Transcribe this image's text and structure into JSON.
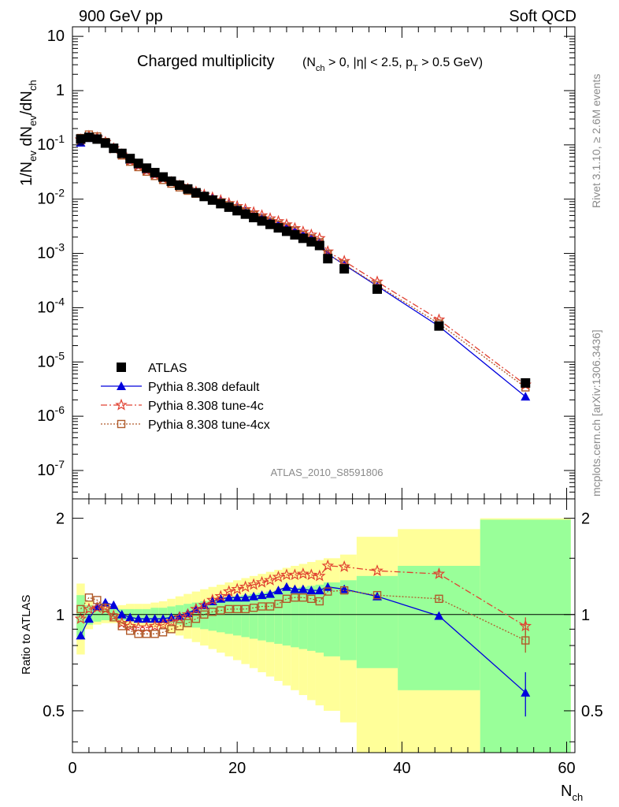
{
  "header": {
    "left": "900 GeV pp",
    "right": "Soft QCD"
  },
  "side": {
    "rivet": "Rivet 3.1.10, ≥ 2.6M events",
    "mcplots": "mcplots.cern.ch [arXiv:1306.3436]"
  },
  "plot_title": {
    "main": "Charged multiplicity",
    "cuts": "(N_ch > 0, |η| < 2.5, p_T > 0.5 GeV)"
  },
  "analysis_id": "ATLAS_2010_S8591806",
  "colors": {
    "atlas": "#000000",
    "default": "#0000dd",
    "tune4c": "#e04030",
    "tune4cx": "#b05a2a",
    "band_inner": "#99ff99",
    "band_outer": "#ffff99"
  },
  "chart_data": [
    {
      "type": "scatter",
      "panel": "main",
      "xlim": [
        0,
        61
      ],
      "ylim": [
        3e-08,
        15
      ],
      "yscale": "log",
      "ylabel": "1/N_ev dN_ev/dN_ch",
      "y_ticks": [
        "10",
        "1",
        "10^-1",
        "10^-2",
        "10^-3",
        "10^-4",
        "10^-5",
        "10^-6",
        "10^-7"
      ],
      "legend_position": "bottom-left",
      "series": [
        {
          "name": "ATLAS",
          "x": [
            1,
            2,
            3,
            4,
            5,
            6,
            7,
            8,
            9,
            10,
            11,
            12,
            13,
            14,
            15,
            16,
            17,
            18,
            19,
            20,
            21,
            22,
            23,
            24,
            25,
            26,
            27,
            28,
            29,
            30,
            31,
            33,
            37,
            44.5,
            55
          ],
          "y": [
            0.128,
            0.138,
            0.128,
            0.108,
            0.0865,
            0.0696,
            0.056,
            0.0456,
            0.0373,
            0.0308,
            0.0256,
            0.0214,
            0.0181,
            0.0154,
            0.0131,
            0.0112,
            0.00963,
            0.00826,
            0.00712,
            0.00613,
            0.0053,
            0.00458,
            0.00396,
            0.00343,
            0.00296,
            0.00256,
            0.0022,
            0.0019,
            0.00164,
            0.0014,
            0.0008,
            0.00052,
            0.00022,
            4.6e-05,
            4.1e-06
          ]
        },
        {
          "name": "Pythia 8.308 default",
          "x": [
            1,
            2,
            3,
            4,
            5,
            6,
            7,
            8,
            9,
            10,
            11,
            12,
            13,
            14,
            15,
            16,
            17,
            18,
            19,
            20,
            21,
            22,
            23,
            24,
            25,
            26,
            27,
            28,
            29,
            30,
            31,
            33,
            37,
            44.5,
            55
          ],
          "y": [
            0.11,
            0.134,
            0.135,
            0.117,
            0.09,
            0.068,
            0.053,
            0.043,
            0.0352,
            0.0294,
            0.0248,
            0.021,
            0.0179,
            0.0155,
            0.0135,
            0.0118,
            0.0104,
            0.0091,
            0.0079,
            0.0069,
            0.006,
            0.0052,
            0.0045,
            0.0039,
            0.0034,
            0.003,
            0.0026,
            0.0022,
            0.0019,
            0.0016,
            0.00098,
            0.00062,
            0.00025,
            4.55e-05,
            2.3e-06
          ]
        },
        {
          "name": "Pythia 8.308 tune-4c",
          "x": [
            1,
            2,
            3,
            4,
            5,
            6,
            7,
            8,
            9,
            10,
            11,
            12,
            13,
            14,
            15,
            16,
            17,
            18,
            19,
            20,
            21,
            22,
            23,
            24,
            25,
            26,
            27,
            28,
            29,
            30,
            31,
            33,
            37,
            44.5,
            55
          ],
          "y": [
            0.125,
            0.145,
            0.136,
            0.112,
            0.086,
            0.066,
            0.051,
            0.041,
            0.0338,
            0.0282,
            0.0239,
            0.0205,
            0.0177,
            0.0154,
            0.0136,
            0.012,
            0.0107,
            0.0095,
            0.0084,
            0.0074,
            0.0065,
            0.0057,
            0.005,
            0.0044,
            0.0039,
            0.0034,
            0.0029,
            0.0025,
            0.0022,
            0.0019,
            0.00108,
            0.00072,
            0.0003,
            6e-05,
            3.8e-06
          ]
        },
        {
          "name": "Pythia 8.308 tune-4cx",
          "x": [
            1,
            2,
            3,
            4,
            5,
            6,
            7,
            8,
            9,
            10,
            11,
            12,
            13,
            14,
            15,
            16,
            17,
            18,
            19,
            20,
            21,
            22,
            23,
            24,
            25,
            26,
            27,
            28,
            29,
            30,
            31,
            33,
            37,
            44.5,
            55
          ],
          "y": [
            0.134,
            0.155,
            0.143,
            0.113,
            0.085,
            0.064,
            0.049,
            0.039,
            0.0321,
            0.0267,
            0.0226,
            0.0193,
            0.0165,
            0.0143,
            0.0126,
            0.0111,
            0.0098,
            0.0087,
            0.0077,
            0.0067,
            0.0058,
            0.0051,
            0.0044,
            0.0038,
            0.0034,
            0.003,
            0.0026,
            0.0022,
            0.0019,
            0.0016,
            0.00097,
            0.00063,
            0.00026,
            5.1e-05,
            3.4e-06
          ]
        }
      ]
    },
    {
      "type": "scatter",
      "panel": "ratio",
      "xlim": [
        0,
        61
      ],
      "ylim": [
        0.37,
        2.3
      ],
      "yscale": "log",
      "xlabel": "N_ch",
      "ylabel": "Ratio to ATLAS",
      "x_ticks": [
        0,
        20,
        40,
        60
      ],
      "y_ticks": [
        0.5,
        1,
        2
      ],
      "bands": {
        "edges": [
          0.5,
          1.5,
          2.5,
          3.5,
          4.5,
          5.5,
          6.5,
          7.5,
          8.5,
          9.5,
          10.5,
          11.5,
          12.5,
          13.5,
          14.5,
          15.5,
          16.5,
          17.5,
          18.5,
          19.5,
          20.5,
          21.5,
          22.5,
          23.5,
          24.5,
          25.5,
          26.5,
          27.5,
          28.5,
          29.5,
          30.5,
          32.5,
          34.5,
          39.5,
          49.5,
          60.5
        ],
        "inner_halfwidth": [
          0.15,
          0.07,
          0.05,
          0.04,
          0.04,
          0.04,
          0.04,
          0.04,
          0.04,
          0.05,
          0.05,
          0.06,
          0.07,
          0.08,
          0.09,
          0.1,
          0.11,
          0.12,
          0.13,
          0.14,
          0.15,
          0.16,
          0.17,
          0.18,
          0.19,
          0.2,
          0.21,
          0.22,
          0.23,
          0.24,
          0.26,
          0.28,
          0.32,
          0.42,
          0.98
        ],
        "outer_halfwidth": [
          0.25,
          0.1,
          0.07,
          0.06,
          0.06,
          0.07,
          0.08,
          0.08,
          0.08,
          0.09,
          0.1,
          0.12,
          0.14,
          0.16,
          0.18,
          0.2,
          0.22,
          0.24,
          0.26,
          0.28,
          0.3,
          0.32,
          0.34,
          0.36,
          0.38,
          0.4,
          0.42,
          0.44,
          0.46,
          0.48,
          0.5,
          0.54,
          0.75,
          0.85,
          1.0
        ]
      },
      "series": [
        {
          "name": "Pythia 8.308 default",
          "x": [
            1,
            2,
            3,
            4,
            5,
            6,
            7,
            8,
            9,
            10,
            11,
            12,
            13,
            14,
            15,
            16,
            17,
            18,
            19,
            20,
            21,
            22,
            23,
            24,
            25,
            26,
            27,
            28,
            29,
            30,
            31,
            33,
            37,
            44.5,
            55
          ],
          "y": [
            0.86,
            0.97,
            1.06,
            1.09,
            1.07,
            1.0,
            0.98,
            0.97,
            0.97,
            0.97,
            0.97,
            0.98,
            0.99,
            1.01,
            1.04,
            1.07,
            1.1,
            1.12,
            1.13,
            1.13,
            1.13,
            1.14,
            1.15,
            1.16,
            1.19,
            1.22,
            1.2,
            1.2,
            1.19,
            1.19,
            1.22,
            1.2,
            1.14,
            0.99,
            0.57
          ],
          "yerr": [
            0,
            0,
            0,
            0,
            0,
            0,
            0,
            0,
            0,
            0,
            0,
            0,
            0,
            0,
            0,
            0,
            0,
            0,
            0,
            0,
            0,
            0,
            0,
            0,
            0,
            0,
            0,
            0,
            0,
            0,
            0,
            0,
            0,
            0.02,
            0.09
          ]
        },
        {
          "name": "Pythia 8.308 tune-4c",
          "x": [
            1,
            2,
            3,
            4,
            5,
            6,
            7,
            8,
            9,
            10,
            11,
            12,
            13,
            14,
            15,
            16,
            17,
            18,
            19,
            20,
            21,
            22,
            23,
            24,
            25,
            26,
            27,
            28,
            29,
            30,
            31,
            33,
            37,
            44.5,
            55
          ],
          "y": [
            0.97,
            1.04,
            1.05,
            1.04,
            0.99,
            0.94,
            0.92,
            0.91,
            0.91,
            0.92,
            0.93,
            0.95,
            0.98,
            1.0,
            1.04,
            1.07,
            1.11,
            1.14,
            1.18,
            1.2,
            1.22,
            1.24,
            1.26,
            1.28,
            1.31,
            1.33,
            1.33,
            1.34,
            1.33,
            1.32,
            1.42,
            1.41,
            1.37,
            1.34,
            0.92
          ],
          "yerr": [
            0,
            0,
            0,
            0,
            0,
            0,
            0,
            0,
            0,
            0,
            0,
            0,
            0,
            0,
            0,
            0,
            0,
            0,
            0,
            0,
            0,
            0,
            0,
            0,
            0,
            0,
            0,
            0,
            0,
            0,
            0,
            0,
            0,
            0.03,
            0.06
          ]
        },
        {
          "name": "Pythia 8.308 tune-4cx",
          "x": [
            1,
            2,
            3,
            4,
            5,
            6,
            7,
            8,
            9,
            10,
            11,
            12,
            13,
            14,
            15,
            16,
            17,
            18,
            19,
            20,
            21,
            22,
            23,
            24,
            25,
            26,
            27,
            28,
            29,
            30,
            31,
            33,
            37,
            44.5,
            55
          ],
          "y": [
            1.04,
            1.13,
            1.11,
            1.05,
            0.98,
            0.92,
            0.89,
            0.87,
            0.87,
            0.87,
            0.88,
            0.9,
            0.92,
            0.94,
            0.97,
            1.0,
            1.02,
            1.03,
            1.04,
            1.04,
            1.04,
            1.05,
            1.06,
            1.06,
            1.08,
            1.12,
            1.13,
            1.13,
            1.12,
            1.1,
            1.18,
            1.19,
            1.15,
            1.12,
            0.83
          ],
          "yerr": [
            0,
            0,
            0,
            0,
            0,
            0,
            0,
            0,
            0,
            0,
            0,
            0,
            0,
            0,
            0,
            0,
            0,
            0,
            0,
            0,
            0,
            0,
            0,
            0,
            0,
            0,
            0,
            0,
            0,
            0,
            0,
            0,
            0,
            0.02,
            0.07
          ]
        }
      ]
    }
  ]
}
